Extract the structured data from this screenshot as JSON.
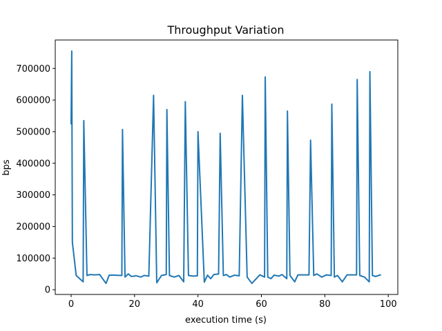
{
  "chart_data": {
    "type": "line",
    "title": "Throughput Variation",
    "xlabel": "execution time (s)",
    "ylabel": "bps",
    "xlim": [
      -5,
      103
    ],
    "ylim": [
      -15000,
      790000
    ],
    "xticks": [
      0,
      20,
      40,
      60,
      80,
      100
    ],
    "yticks": [
      0,
      100000,
      200000,
      300000,
      400000,
      500000,
      600000,
      700000
    ],
    "grid": false,
    "line_color": "#1f77b4",
    "series": [
      {
        "x": [
          0.0,
          0.2,
          0.4,
          1.6,
          3.8,
          4.0,
          5.0,
          6.0,
          7.5,
          9.0,
          11.0,
          12.0,
          13.5,
          16.0,
          16.2,
          17.0,
          18.0,
          19.0,
          20.5,
          22.0,
          23.0,
          24.5,
          26.0,
          27.0,
          28.5,
          30.0,
          30.2,
          31.0,
          32.5,
          34.0,
          35.5,
          36.0,
          37.0,
          38.5,
          39.8,
          40.0,
          42.0,
          43.0,
          44.0,
          45.0,
          46.5,
          47.0,
          48.0,
          49.0,
          50.0,
          51.5,
          53.0,
          54.0,
          55.5,
          57.0,
          59.5,
          61.0,
          61.2,
          62.0,
          63.0,
          64.0,
          65.5,
          66.5,
          68.0,
          68.2,
          69.0,
          70.5,
          71.5,
          73.5,
          75.0,
          75.5,
          76.5,
          77.5,
          79.0,
          80.5,
          82.0,
          82.2,
          83.0,
          84.0,
          85.5,
          87.0,
          90.0,
          90.2,
          91.0,
          92.5,
          94.0,
          94.2,
          95.0,
          96.0,
          97.5
        ],
        "y": [
          525000,
          755000,
          150000,
          45000,
          25000,
          535000,
          45000,
          48000,
          47000,
          48000,
          20000,
          46000,
          46000,
          45000,
          507000,
          40000,
          50000,
          42000,
          44000,
          40000,
          45000,
          43000,
          615000,
          22000,
          45000,
          48000,
          570000,
          45000,
          40000,
          45000,
          25000,
          595000,
          45000,
          43000,
          44000,
          500000,
          24000,
          46000,
          35000,
          48000,
          50000,
          495000,
          45000,
          48000,
          40000,
          46000,
          44000,
          615000,
          40000,
          20000,
          47000,
          40000,
          673000,
          40000,
          35000,
          46000,
          43000,
          48000,
          35000,
          565000,
          45000,
          25000,
          47000,
          47000,
          47000,
          473000,
          45000,
          50000,
          40000,
          47000,
          45000,
          587000,
          40000,
          45000,
          25000,
          47000,
          47000,
          665000,
          45000,
          40000,
          25000,
          690000,
          45000,
          42000,
          47000
        ]
      }
    ]
  }
}
